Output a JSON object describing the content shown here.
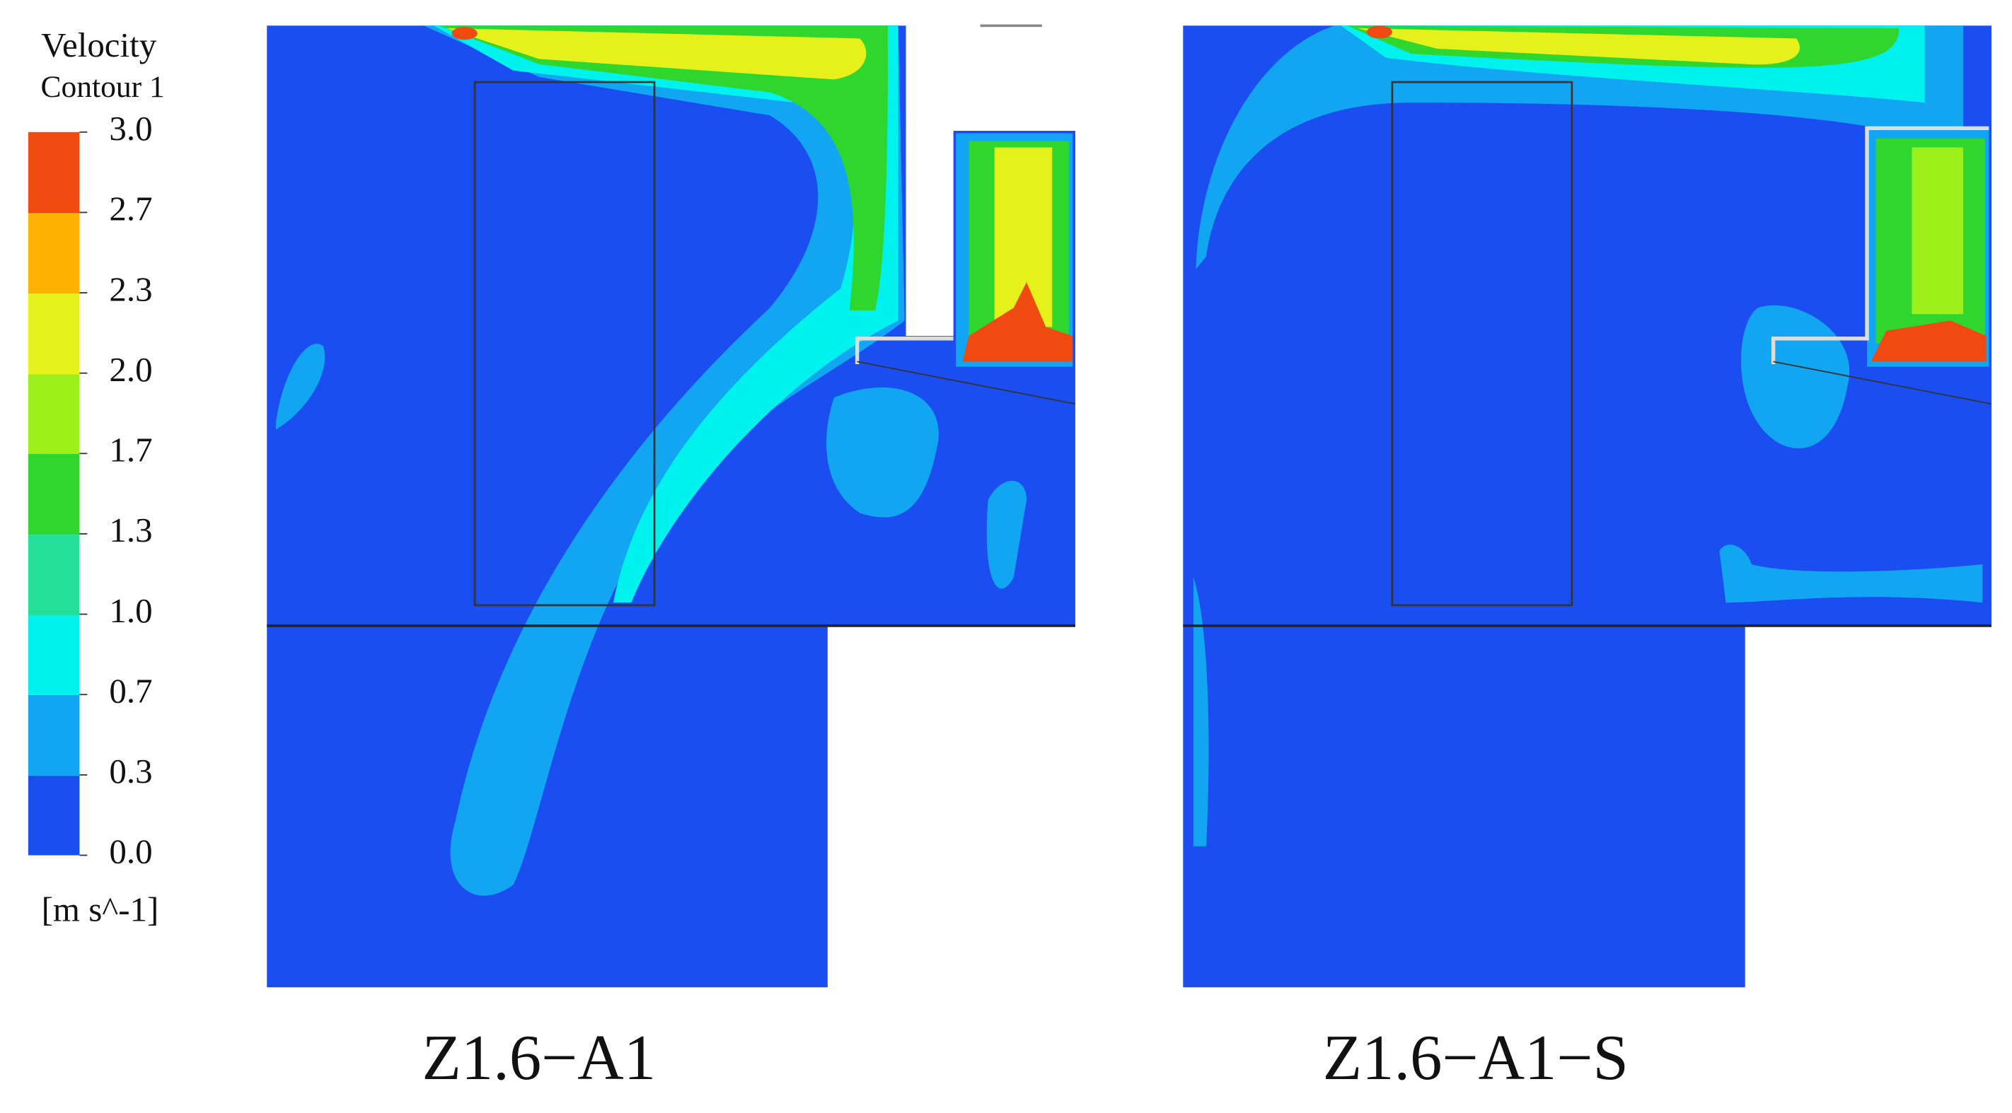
{
  "legend": {
    "title": "Velocity",
    "subtitle": "Contour 1",
    "ticks": [
      "3.0",
      "2.7",
      "2.3",
      "2.0",
      "1.7",
      "1.3",
      "1.0",
      "0.7",
      "0.3",
      "0.0"
    ],
    "unit": "[m s^-1]"
  },
  "panels": [
    {
      "label": "Z1.6−A1"
    },
    {
      "label": "Z1.6−A1−S"
    }
  ]
}
